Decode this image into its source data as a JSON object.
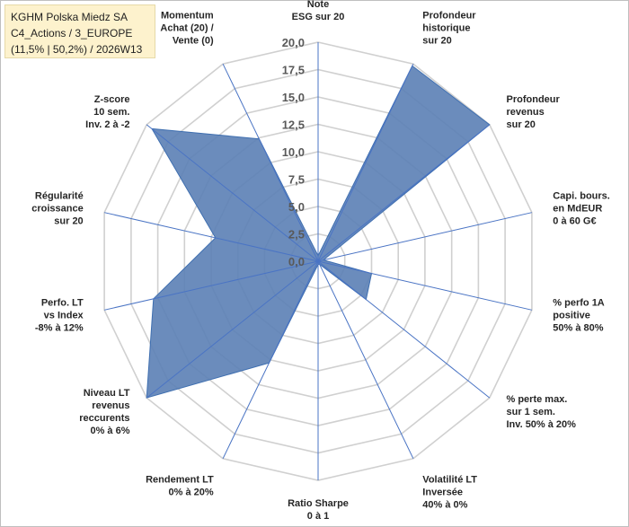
{
  "title_box": {
    "line1": "KGHM Polska Miedz SA",
    "line2": "C4_Actions / 3_EUROPE",
    "line3": "(11,5% | 50,2%) / 2026W13"
  },
  "colors": {
    "fill": "#5b7fb5",
    "stroke": "#3f6fb0",
    "spoke": "#4a74c4",
    "grid": "#d0d0d0"
  },
  "chart_data": {
    "type": "radar",
    "r_min": 0,
    "r_max": 20,
    "r_step": 2.5,
    "tick_labels": [
      "0,0",
      "2,5",
      "5,0",
      "7,5",
      "10,0",
      "12,5",
      "15,0",
      "17,5",
      "20,0"
    ],
    "axes": [
      {
        "label": [
          "Note",
          "ESG sur 20"
        ],
        "value": 0.5
      },
      {
        "label": [
          "Profondeur",
          "historique",
          "sur 20"
        ],
        "value": 19.8
      },
      {
        "label": [
          "Profondeur",
          "revenus",
          "sur 20"
        ],
        "value": 20.0
      },
      {
        "label": [
          "Capi. bours.",
          "en MdEUR",
          "0 à 60 G€"
        ],
        "value": 0.5
      },
      {
        "label": [
          "% perfo 1A",
          "positive",
          "50% à 80%"
        ],
        "value": 5.0
      },
      {
        "label": [
          "% perte max.",
          "sur 1 sem.",
          "Inv. 50% à 20%"
        ],
        "value": 5.6
      },
      {
        "label": [
          "Volatilité LT",
          "Inversée",
          "40% à 0%"
        ],
        "value": 0.3
      },
      {
        "label": [
          "Ratio Sharpe",
          "0 à 1"
        ],
        "value": 0.3
      },
      {
        "label": [
          "Rendement LT",
          "0% à 20%"
        ],
        "value": 10.3
      },
      {
        "label": [
          "Niveau LT",
          "revenus",
          "reccurents",
          "0% à 6%"
        ],
        "value": 20.0
      },
      {
        "label": [
          "Perfo. LT",
          "vs Index",
          "-8% à 12%"
        ],
        "value": 15.4
      },
      {
        "label": [
          "Régularité",
          "croissance",
          "sur 20"
        ],
        "value": 9.6
      },
      {
        "label": [
          "Z-score",
          "10 sem.",
          "Inv. 2 à -2"
        ],
        "value": 19.4
      },
      {
        "label": [
          "Momentum",
          "Achat (20) /",
          "Vente (0)"
        ],
        "value": 12.4
      }
    ]
  }
}
